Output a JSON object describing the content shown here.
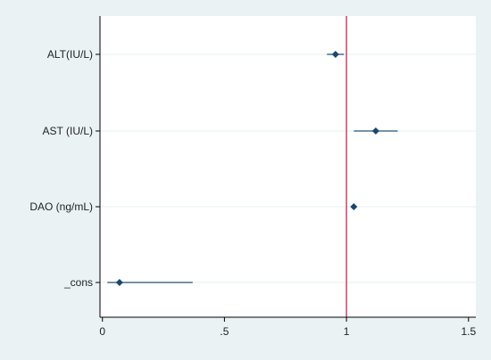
{
  "chart_data": {
    "type": "scatter",
    "subtype": "coefficient-plot",
    "title": "",
    "xlabel": "",
    "ylabel": "",
    "categories": [
      "ALT(IU/L)",
      "AST (IU/L)",
      "DAO (ng/mL)",
      "_cons"
    ],
    "points": [
      {
        "label": "ALT(IU/L)",
        "estimate": 0.955,
        "ci_low": 0.92,
        "ci_high": 0.99
      },
      {
        "label": "AST (IU/L)",
        "estimate": 1.12,
        "ci_low": 1.03,
        "ci_high": 1.21
      },
      {
        "label": "DAO (ng/mL)",
        "estimate": 1.03,
        "ci_low": 1.02,
        "ci_high": 1.04
      },
      {
        "label": "_cons",
        "estimate": 0.07,
        "ci_low": 0.02,
        "ci_high": 0.37
      }
    ],
    "xlim": [
      -0.01,
      1.53
    ],
    "xticks": [
      0,
      0.5,
      1,
      1.5
    ],
    "xtick_labels": [
      "0",
      ".5",
      "1",
      "1.5"
    ],
    "reference_line": 1,
    "grid": "horizontal",
    "legend": "none",
    "colors": {
      "background": "#eaf2f3",
      "plot_area": "#ffffff",
      "marker": "#1a476f",
      "ci_line": "#4a6f8c",
      "reference_line": "#c0395a",
      "grid": "#eaf2f3",
      "axis": "#000000"
    }
  }
}
